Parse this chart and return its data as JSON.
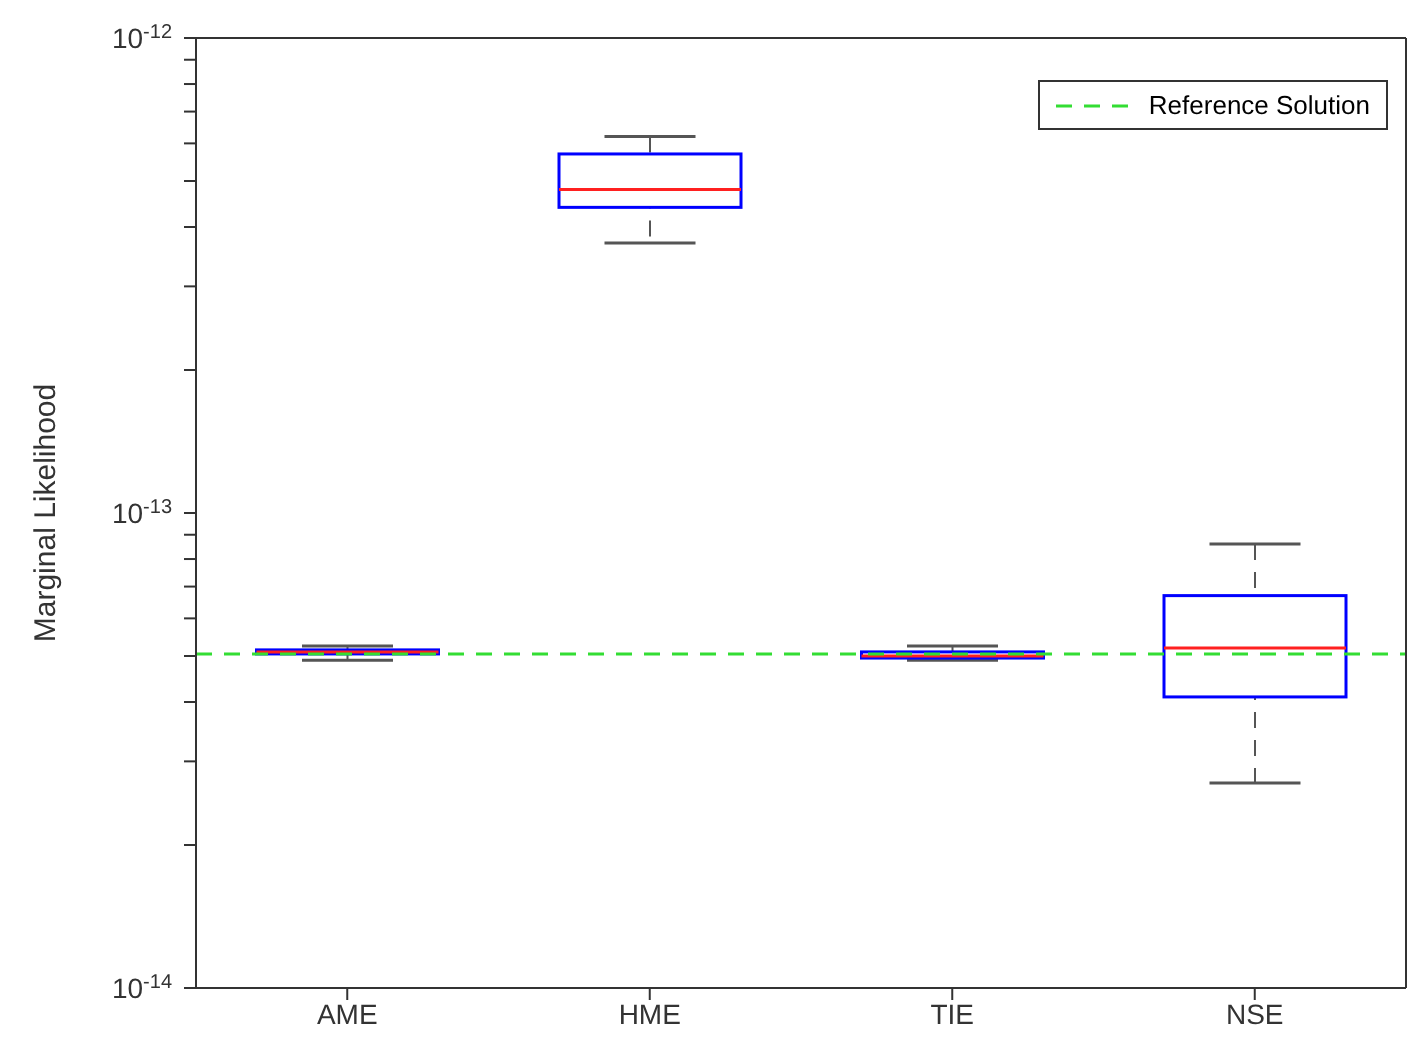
{
  "chart_data": {
    "type": "box",
    "ylabel": "Marginal Likelihood",
    "categories": [
      "AME",
      "HME",
      "TIE",
      "NSE"
    ],
    "color": "#0000ff",
    "log": true,
    "ylim": [
      1e-14,
      1e-12
    ],
    "yticks": [
      {
        "value": 1e-14,
        "label": "10$^{-14}$"
      },
      {
        "value": 2e-14,
        "label": null
      },
      {
        "value": 3e-14,
        "label": null
      },
      {
        "value": 4e-14,
        "label": null
      },
      {
        "value": 5e-14,
        "label": null
      },
      {
        "value": 6e-14,
        "label": null
      },
      {
        "value": 7e-14,
        "label": null
      },
      {
        "value": 8e-14,
        "label": null
      },
      {
        "value": 9e-14,
        "label": null
      },
      {
        "value": 1e-13,
        "label": "10$^{-13}$"
      },
      {
        "value": 2e-13,
        "label": null
      },
      {
        "value": 3e-13,
        "label": null
      },
      {
        "value": 4e-13,
        "label": null
      },
      {
        "value": 5e-13,
        "label": null
      },
      {
        "value": 6e-13,
        "label": null
      },
      {
        "value": 7e-13,
        "label": null
      },
      {
        "value": 8e-13,
        "label": null
      },
      {
        "value": 9e-13,
        "label": null
      },
      {
        "value": 1e-12,
        "label": "10$^{-12}$"
      }
    ],
    "boxes": [
      {
        "low": 4.9e-14,
        "q1": 5.05e-14,
        "median": 5.1e-14,
        "q3": 5.15e-14,
        "high": 5.25e-14
      },
      {
        "low": 3.7e-13,
        "q1": 4.4e-13,
        "median": 4.8e-13,
        "q3": 5.7e-13,
        "high": 6.2e-13
      },
      {
        "low": 4.9e-14,
        "q1": 4.95e-14,
        "median": 5e-14,
        "q3": 5.1e-14,
        "high": 5.25e-14
      },
      {
        "low": 2.7e-14,
        "q1": 4.1e-14,
        "median": 5.2e-14,
        "q3": 6.7e-14,
        "high": 8.6e-14
      }
    ],
    "ref_lines": [
      {
        "axis": "y",
        "value": 5.05e-14,
        "label": "Reference Solution",
        "color": "#33dd33",
        "line_style": "dashed"
      }
    ],
    "legend": "top right"
  }
}
